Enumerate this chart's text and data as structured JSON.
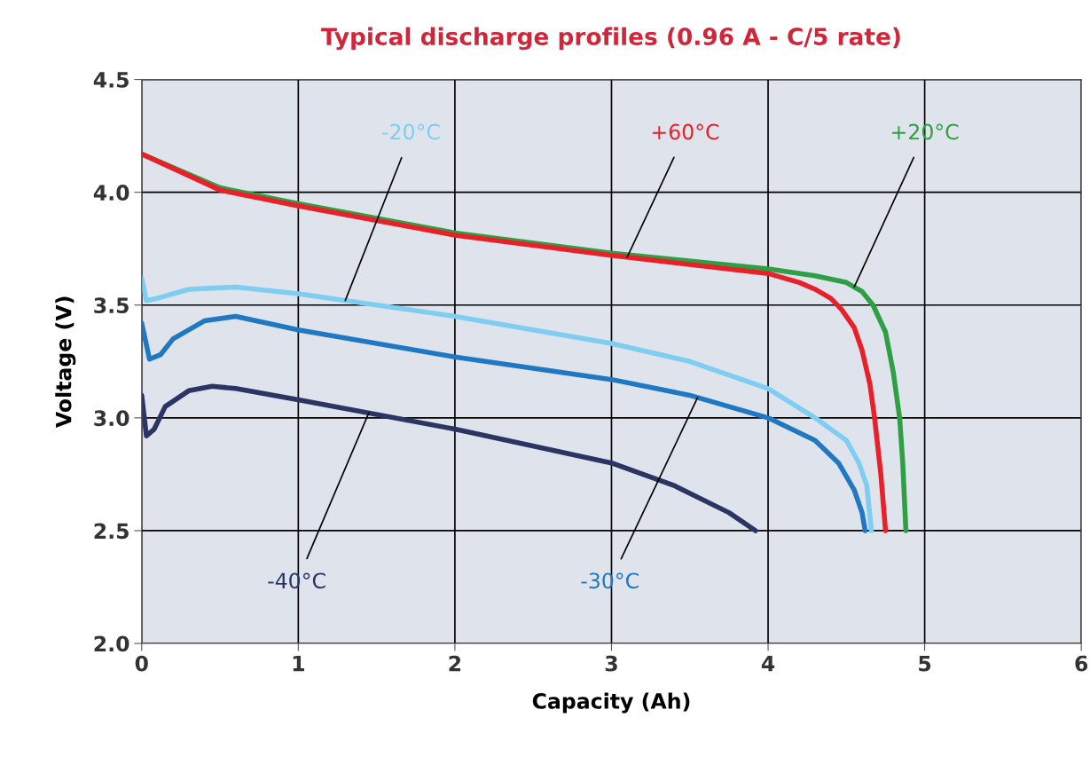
{
  "chart_data": {
    "type": "line",
    "title": "Typical discharge profiles (0.96 A - C/5 rate)",
    "xlabel": "Capacity (Ah)",
    "ylabel": "Voltage (V)",
    "xlim": [
      0,
      6
    ],
    "ylim": [
      2.0,
      4.5
    ],
    "xticks": [
      0,
      1,
      2,
      3,
      4,
      5,
      6
    ],
    "yticks": [
      {
        "value": 2.0,
        "label": "2.0"
      },
      {
        "value": 2.5,
        "label": "2.5"
      },
      {
        "value": 3.0,
        "label": "3.0"
      },
      {
        "value": 3.5,
        "label": "3.5"
      },
      {
        "value": 4.0,
        "label": "4.0"
      },
      {
        "value": 4.5,
        "label": "4.5"
      }
    ],
    "grid": true,
    "legend": false,
    "marker": "none",
    "line_style": "solid",
    "series": [
      {
        "name": "+20°C",
        "color": "#2ea043",
        "x": [
          0,
          0.5,
          1,
          2,
          3,
          4,
          4.3,
          4.5,
          4.6,
          4.67,
          4.75,
          4.8,
          4.84,
          4.86,
          4.88
        ],
        "values": [
          4.17,
          4.02,
          3.95,
          3.82,
          3.73,
          3.66,
          3.63,
          3.6,
          3.56,
          3.5,
          3.38,
          3.2,
          3.0,
          2.8,
          2.5
        ]
      },
      {
        "name": "+60°C",
        "color": "#e8202a",
        "x": [
          0,
          0.5,
          1,
          2,
          3,
          4,
          4.2,
          4.3,
          4.4,
          4.47,
          4.55,
          4.6,
          4.65,
          4.68,
          4.72,
          4.75
        ],
        "values": [
          4.17,
          4.01,
          3.94,
          3.81,
          3.72,
          3.64,
          3.6,
          3.57,
          3.53,
          3.48,
          3.4,
          3.3,
          3.15,
          3.0,
          2.75,
          2.5
        ]
      },
      {
        "name": "-20°C",
        "color": "#7fcdf0",
        "x": [
          0,
          0.03,
          0.1,
          0.3,
          0.6,
          1,
          2,
          3,
          3.5,
          4,
          4.3,
          4.5,
          4.58,
          4.63,
          4.66
        ],
        "values": [
          3.62,
          3.52,
          3.53,
          3.57,
          3.58,
          3.55,
          3.45,
          3.33,
          3.25,
          3.13,
          3.0,
          2.9,
          2.8,
          2.7,
          2.5
        ]
      },
      {
        "name": "-30°C",
        "color": "#1f78c1",
        "x": [
          0,
          0.05,
          0.12,
          0.2,
          0.4,
          0.6,
          1,
          2,
          3,
          3.5,
          4,
          4.3,
          4.45,
          4.55,
          4.6,
          4.62
        ],
        "values": [
          3.42,
          3.26,
          3.28,
          3.35,
          3.43,
          3.45,
          3.39,
          3.27,
          3.17,
          3.1,
          3.0,
          2.9,
          2.8,
          2.68,
          2.58,
          2.5
        ]
      },
      {
        "name": "-40°C",
        "color": "#2b3463",
        "x": [
          0,
          0.03,
          0.08,
          0.15,
          0.3,
          0.45,
          0.6,
          1,
          2,
          3,
          3.4,
          3.75,
          3.92
        ],
        "values": [
          3.1,
          2.92,
          2.95,
          3.05,
          3.12,
          3.14,
          3.13,
          3.08,
          2.95,
          2.8,
          2.7,
          2.58,
          2.5
        ]
      }
    ]
  }
}
